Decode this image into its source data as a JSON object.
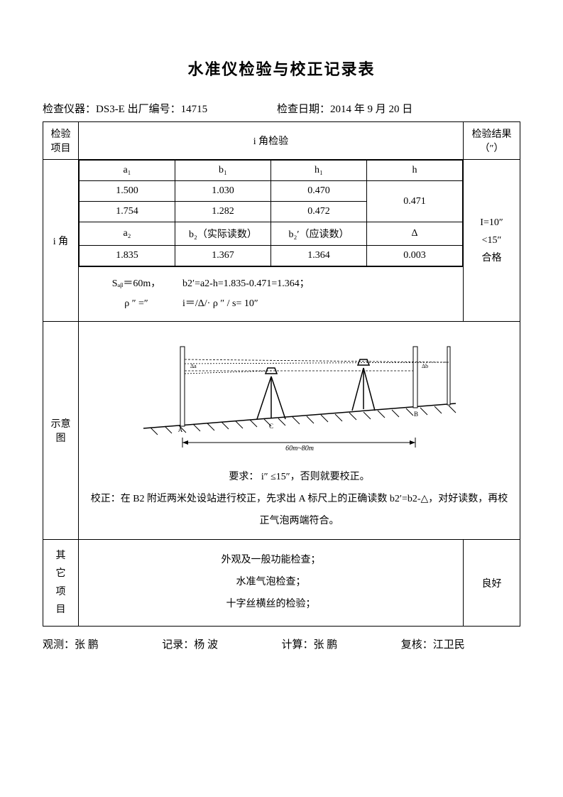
{
  "title": "水准仪检验与校正记录表",
  "meta": {
    "instrument_label": "检查仪器：",
    "instrument_value": "DS3-E",
    "serial_label": " 出厂编号：",
    "serial_value": "14715",
    "date_label": "检查日期：",
    "date_value": "2014 年 9 月 20 日"
  },
  "headers": {
    "item": "检验\n项目",
    "i_check": "i 角检验",
    "result": "检验结果\n（″）"
  },
  "i_angle": {
    "row_label": "i 角",
    "col_a1": "a₁",
    "col_b1": "b₁",
    "col_h1": "h₁",
    "col_h": "h",
    "r1": {
      "a": "1.500",
      "b": "1.030",
      "h": "0.470"
    },
    "r2": {
      "a": "1.754",
      "b": "1.282",
      "h": "0.472"
    },
    "h_avg": "0.471",
    "col_a2": "a₂",
    "col_b2": "b₂（实际读数）",
    "col_b2p": "b₂′（应读数）",
    "col_delta": "Δ",
    "r3": {
      "a": "1.835",
      "b": "1.367",
      "bp": "1.364",
      "d": "0.003"
    },
    "formula1a": "Sₐᵦ＝60m，",
    "formula1b": "b2′=a2-h=1.835-0.471=1.364；",
    "formula2a": "ρ ″ =″",
    "formula2b": "i＝/Δ/· ρ ″ / s=  10″",
    "result": "I=10″\n <15″\n合格"
  },
  "diagram": {
    "row_label": "示意图",
    "range_label": "60m~80m",
    "req": "要求：  i″ ≤15″，否则就要校正。",
    "fix": "校正：在 B2 附近两米处设站进行校正，先求出 A 标尺上的正确读数 b2′=b2-△，对好读数，再校正气泡两端符合。"
  },
  "other": {
    "row_label": "其它项目",
    "line1": "外观及一般功能检查；",
    "line2": "水准气泡检查；",
    "line3": "十字丝横丝的检验；",
    "result": "良好"
  },
  "signatures": {
    "observe_label": "观测：",
    "observe_value": "张  鹏",
    "record_label": "记录：",
    "record_value": "杨  波",
    "calc_label": "计算：",
    "calc_value": "张  鹏",
    "review_label": "复核：",
    "review_value": "江卫民"
  },
  "colors": {
    "text": "#000000",
    "bg": "#ffffff",
    "border": "#000000"
  }
}
